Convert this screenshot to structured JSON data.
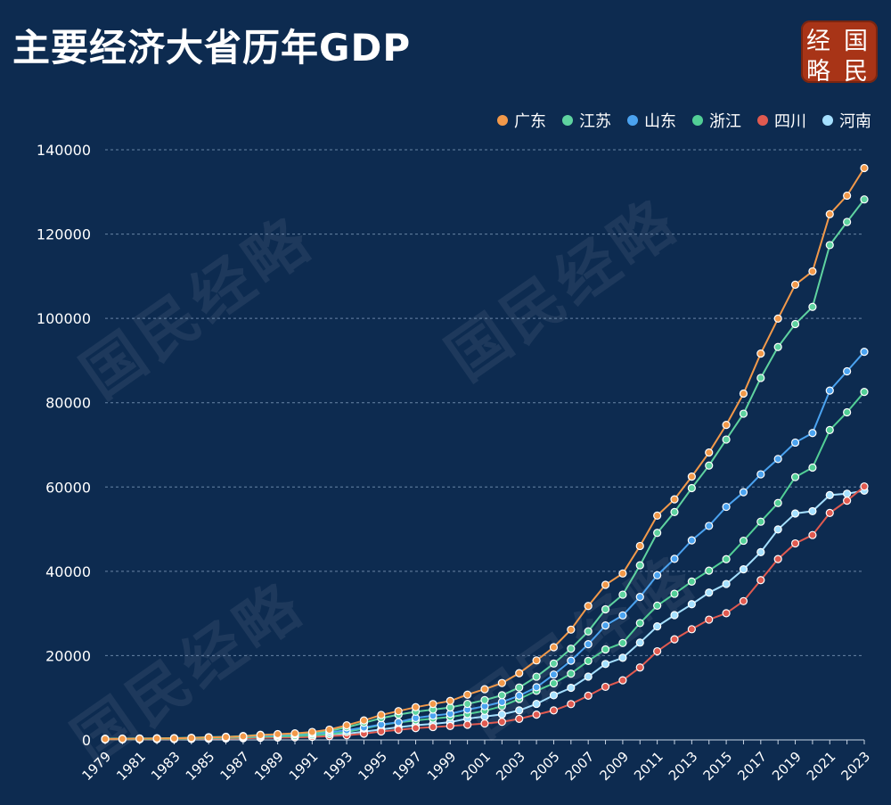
{
  "title": "主要经济大省历年GDP",
  "logo": [
    "经",
    "国",
    "略",
    "民"
  ],
  "watermark": "国民经略",
  "chart_data": {
    "type": "line",
    "title": "主要经济大省历年GDP",
    "xlabel": "",
    "ylabel": "",
    "ylim": [
      0,
      140000
    ],
    "yticks": [
      0,
      20000,
      40000,
      60000,
      80000,
      100000,
      120000,
      140000
    ],
    "grid": true,
    "legend_position": "top-right",
    "x": [
      1979,
      1980,
      1981,
      1982,
      1983,
      1984,
      1985,
      1986,
      1987,
      1988,
      1989,
      1990,
      1991,
      1992,
      1993,
      1994,
      1995,
      1996,
      1997,
      1998,
      1999,
      2000,
      2001,
      2002,
      2003,
      2004,
      2005,
      2006,
      2007,
      2008,
      2009,
      2010,
      2011,
      2012,
      2013,
      2014,
      2015,
      2016,
      2017,
      2018,
      2019,
      2020,
      2021,
      2022,
      2023
    ],
    "xtick_labels": [
      "1979",
      "1981",
      "1983",
      "1985",
      "1987",
      "1989",
      "1991",
      "1993",
      "1995",
      "1997",
      "1999",
      "2001",
      "2003",
      "2005",
      "2007",
      "2009",
      "2011",
      "2013",
      "2015",
      "2017",
      "2019",
      "2021",
      "2023"
    ],
    "series": [
      {
        "name": "广东",
        "color": "#f2994a",
        "values": [
          210,
          250,
          290,
          340,
          370,
          460,
          580,
          670,
          850,
          1150,
          1380,
          1560,
          1890,
          2450,
          3470,
          4620,
          5930,
          6830,
          7770,
          8530,
          9250,
          10740,
          12030,
          13500,
          15840,
          18860,
          22000,
          26160,
          31780,
          36800,
          39480,
          46010,
          53210,
          57070,
          62470,
          68170,
          74730,
          82160,
          91650,
          99950,
          107990,
          111150,
          124720,
          129120,
          135670
        ]
      },
      {
        "name": "江苏",
        "color": "#5fd3a0",
        "values": [
          290,
          320,
          350,
          390,
          440,
          520,
          650,
          740,
          920,
          1210,
          1320,
          1420,
          1600,
          2140,
          2990,
          4060,
          5150,
          6000,
          6680,
          7200,
          7700,
          8550,
          9450,
          10600,
          12440,
          15000,
          18120,
          21640,
          25740,
          30980,
          34460,
          41430,
          49110,
          54060,
          59750,
          65090,
          71260,
          77390,
          85870,
          93210,
          98660,
          102720,
          117390,
          122880,
          128220
        ]
      },
      {
        "name": "山东",
        "color": "#4ba3f0",
        "values": [
          230,
          260,
          300,
          340,
          390,
          460,
          580,
          640,
          780,
          1000,
          1150,
          1300,
          1480,
          1780,
          2300,
          2950,
          3640,
          4200,
          5200,
          5750,
          6200,
          7200,
          8000,
          9000,
          10500,
          12500,
          15500,
          18800,
          22700,
          27150,
          29540,
          33920,
          39060,
          42960,
          47340,
          50770,
          55290,
          58760,
          63010,
          66650,
          70540,
          72800,
          82880,
          87440,
          92070
        ]
      },
      {
        "name": "浙江",
        "color": "#52cf96",
        "values": [
          160,
          180,
          200,
          230,
          260,
          320,
          430,
          500,
          600,
          770,
          850,
          900,
          1080,
          1380,
          1910,
          2690,
          3560,
          4150,
          4640,
          5050,
          5440,
          6140,
          6900,
          8000,
          9700,
          11650,
          13420,
          15720,
          18750,
          21460,
          22990,
          27720,
          31850,
          34670,
          37570,
          40150,
          42880,
          47250,
          51770,
          56200,
          62350,
          64610,
          73520,
          77720,
          82550
        ]
      },
      {
        "name": "四川",
        "color": "#e05a50",
        "values": [
          120,
          140,
          160,
          180,
          200,
          240,
          300,
          340,
          390,
          500,
          560,
          620,
          710,
          890,
          1100,
          1480,
          2000,
          2400,
          2800,
          3050,
          3300,
          3600,
          3900,
          4300,
          5000,
          6000,
          7000,
          8500,
          10500,
          12600,
          14150,
          17190,
          21030,
          23870,
          26260,
          28540,
          30050,
          32930,
          37910,
          42900,
          46620,
          48600,
          53850,
          56750,
          60130
        ]
      },
      {
        "name": "河南",
        "color": "#a5e0ff",
        "values": [
          140,
          160,
          180,
          200,
          230,
          270,
          350,
          400,
          450,
          650,
          720,
          750,
          850,
          1100,
          1450,
          1950,
          2500,
          3000,
          3500,
          3800,
          4200,
          5050,
          5550,
          6050,
          7000,
          8550,
          10590,
          12360,
          15010,
          18020,
          19480,
          23090,
          26930,
          29600,
          32190,
          34940,
          37000,
          40470,
          44550,
          49940,
          53720,
          54260,
          58070,
          58410,
          59130
        ]
      }
    ]
  }
}
